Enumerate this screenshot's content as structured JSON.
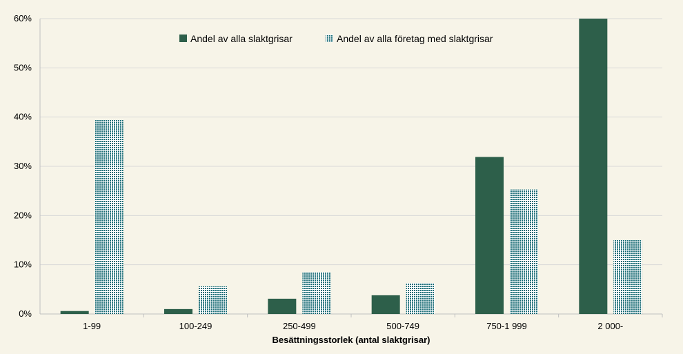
{
  "chart_data": {
    "type": "bar",
    "xlabel": "Besättningsstorlek (antal slaktgrisar)",
    "ylabel": "",
    "categories": [
      "1-99",
      "100-249",
      "250-499",
      "500-749",
      "750-1 999",
      "2 000-"
    ],
    "series": [
      {
        "name": "Andel av alla slaktgrisar",
        "values": [
          0.6,
          1.0,
          3.1,
          3.8,
          31.9,
          60.0
        ],
        "color": "#2d5f4a",
        "pattern": "solid"
      },
      {
        "name": "Andel av alla företag med slaktgrisar",
        "values": [
          39.4,
          5.6,
          8.5,
          6.3,
          25.3,
          15.0
        ],
        "color": "#1e6f78",
        "pattern": "checkered"
      }
    ],
    "ylim": [
      0,
      60
    ],
    "yticks": [
      0,
      10,
      20,
      30,
      40,
      50,
      60
    ],
    "ytick_format": "percent",
    "grid": true,
    "legend_position": "top-center"
  }
}
